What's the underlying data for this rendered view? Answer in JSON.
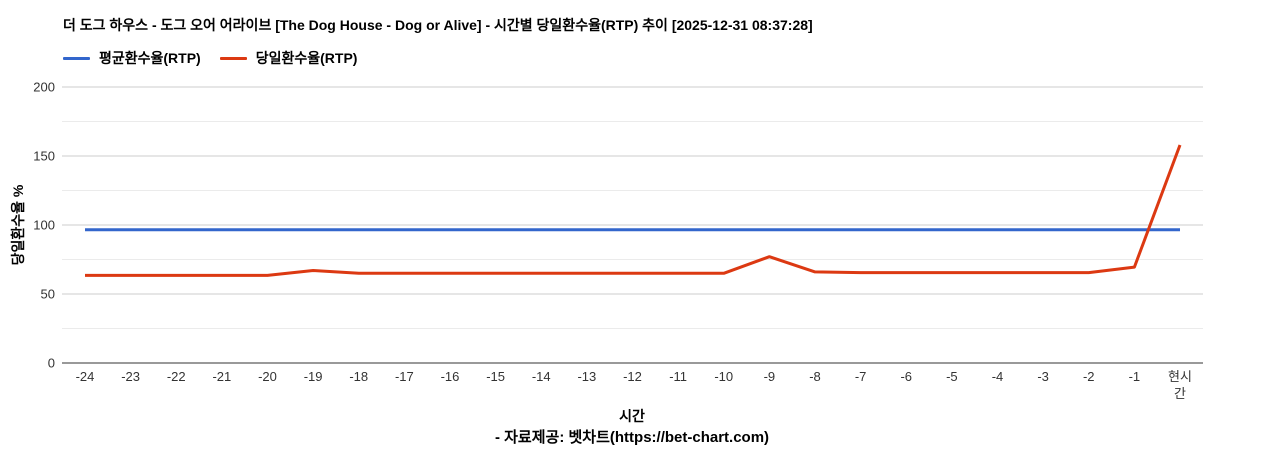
{
  "chart_data": {
    "type": "line",
    "title": "더 도그 하우스 - 도그 오어 어라이브 [The Dog House - Dog or Alive] - 시간별 당일환수율(RTP) 추이 [2025-12-31 08:37:28]",
    "categories": [
      "-24",
      "-23",
      "-22",
      "-21",
      "-20",
      "-19",
      "-18",
      "-17",
      "-16",
      "-15",
      "-14",
      "-13",
      "-12",
      "-11",
      "-10",
      "-9",
      "-8",
      "-7",
      "-6",
      "-5",
      "-4",
      "-3",
      "-2",
      "-1",
      "현시간"
    ],
    "series": [
      {
        "name": "평균환수율(RTP)",
        "color": "#3366cc",
        "values": [
          96.5,
          96.5,
          96.5,
          96.5,
          96.5,
          96.5,
          96.5,
          96.5,
          96.5,
          96.5,
          96.5,
          96.5,
          96.5,
          96.5,
          96.5,
          96.5,
          96.5,
          96.5,
          96.5,
          96.5,
          96.5,
          96.5,
          96.5,
          96.5,
          96.5
        ]
      },
      {
        "name": "당일환수율(RTP)",
        "color": "#dc3912",
        "values": [
          63.5,
          63.5,
          63.5,
          63.5,
          63.5,
          67,
          65,
          65,
          65,
          65,
          65,
          65,
          65,
          65,
          65,
          77,
          66,
          65.5,
          65.5,
          65.5,
          65.5,
          65.5,
          65.5,
          69.5,
          158
        ]
      }
    ],
    "xlabel": "시간",
    "ylabel": "당일환수율 %",
    "ylim": [
      0,
      200
    ],
    "yticks": [
      0,
      50,
      100,
      150,
      200
    ],
    "minor_yticks": [
      25,
      75,
      125,
      175
    ],
    "grid": {
      "major_color": "#cccccc",
      "minor_color": "#ebebeb",
      "axis_color": "#333333",
      "tick_text_color": "#333333"
    },
    "legend_position": "top-left"
  },
  "legend": {
    "items": [
      {
        "label": "평균환수율(RTP)",
        "color": "#3366cc"
      },
      {
        "label": "당일환수율(RTP)",
        "color": "#dc3912"
      }
    ]
  },
  "footer": {
    "credit": "- 자료제공: 벳차트(https://bet-chart.com)"
  }
}
